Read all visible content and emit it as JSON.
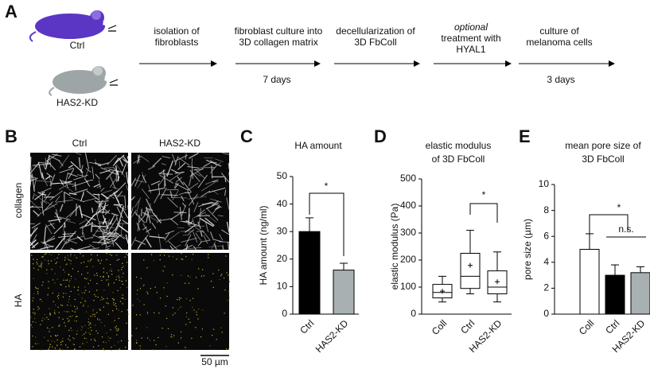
{
  "panel_a": {
    "letter": "A",
    "mouse_labels": [
      "Ctrl",
      "HAS2-KD"
    ],
    "steps": [
      [
        "isolation of",
        "fibroblasts"
      ],
      [
        "fibroblast culture into",
        "3D collagen matrix"
      ],
      [
        "decellularization of",
        "3D FbColl"
      ],
      [
        "optional",
        "treatment with",
        "HYAL1"
      ],
      [
        "culture of",
        "melanoma cells"
      ]
    ],
    "durations": [
      "7 days",
      "3 days"
    ]
  },
  "panel_b": {
    "letter": "B",
    "columns": [
      "Ctrl",
      "HAS2-KD"
    ],
    "rows": [
      "collagen",
      "HA"
    ],
    "scale_bar": "50 µm"
  },
  "chart_data": [
    {
      "type": "bar",
      "letter": "C",
      "title": [
        "HA amount"
      ],
      "y_label": "HA amount (ng/ml)",
      "categories": [
        "Ctrl",
        "HAS2-KD"
      ],
      "values": [
        30,
        16
      ],
      "errors": [
        5,
        2.5
      ],
      "colors": [
        "#000000",
        "#a8b0b2"
      ],
      "ylim": [
        0,
        50
      ],
      "yticks": [
        0,
        10,
        20,
        30,
        40,
        50
      ],
      "annotations": [
        "*"
      ]
    },
    {
      "type": "box",
      "letter": "D",
      "title": [
        "elastic modulus",
        "of 3D FbColl"
      ],
      "y_label": "elastic modulus (Pa)",
      "categories": [
        "Coll",
        "Ctrl",
        "HAS2-KD"
      ],
      "boxes": [
        {
          "min": 45,
          "q1": 60,
          "median": 80,
          "q3": 110,
          "max": 140,
          "mean": 85
        },
        {
          "min": 75,
          "q1": 95,
          "median": 140,
          "q3": 225,
          "max": 310,
          "mean": 180
        },
        {
          "min": 45,
          "q1": 75,
          "median": 100,
          "q3": 160,
          "max": 230,
          "mean": 120
        }
      ],
      "ylim": [
        0,
        500
      ],
      "yticks": [
        0,
        100,
        200,
        300,
        400,
        500
      ],
      "annotations": [
        "*"
      ]
    },
    {
      "type": "bar",
      "letter": "E",
      "title": [
        "mean pore size of",
        "3D FbColl"
      ],
      "y_label": "pore size (µm)",
      "categories": [
        "Coll",
        "Ctrl",
        "HAS2-KD"
      ],
      "values": [
        5,
        3,
        3.2
      ],
      "errors": [
        1.2,
        0.8,
        0.45
      ],
      "colors": [
        "#ffffff",
        "#000000",
        "#a8b0b2"
      ],
      "ylim": [
        0,
        10
      ],
      "yticks": [
        0,
        2,
        4,
        6,
        8,
        10
      ],
      "annotations": [
        "*",
        "n.s."
      ]
    }
  ]
}
